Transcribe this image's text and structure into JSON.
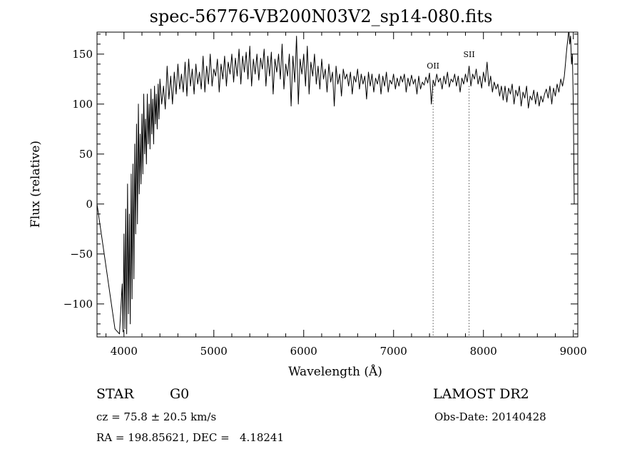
{
  "chart_data": {
    "type": "line",
    "title": "spec-56776-VB200N03V2_sp14-080.fits",
    "xlabel": "Wavelength (Å)",
    "ylabel": "Flux (relative)",
    "xlim": [
      3700,
      9050
    ],
    "ylim": [
      -133,
      172
    ],
    "x_ticks": [
      4000,
      5000,
      6000,
      7000,
      8000,
      9000
    ],
    "y_ticks": [
      -100,
      -50,
      0,
      50,
      100,
      150
    ],
    "grid": false,
    "series": [
      {
        "line_color": "#000000",
        "x": [
          3700,
          3900,
          3950,
          3980,
          3990,
          4000,
          4010,
          4020,
          4030,
          4040,
          4050,
          4060,
          4070,
          4080,
          4090,
          4100,
          4110,
          4120,
          4130,
          4140,
          4150,
          4160,
          4170,
          4180,
          4190,
          4200,
          4210,
          4220,
          4230,
          4240,
          4250,
          4260,
          4270,
          4280,
          4290,
          4300,
          4310,
          4320,
          4330,
          4340,
          4350,
          4360,
          4370,
          4380,
          4390,
          4400,
          4420,
          4440,
          4460,
          4480,
          4500,
          4520,
          4540,
          4560,
          4580,
          4600,
          4620,
          4640,
          4660,
          4680,
          4700,
          4720,
          4740,
          4760,
          4780,
          4800,
          4820,
          4840,
          4860,
          4880,
          4900,
          4920,
          4940,
          4960,
          4980,
          5000,
          5020,
          5040,
          5060,
          5080,
          5100,
          5120,
          5140,
          5160,
          5180,
          5200,
          5220,
          5240,
          5260,
          5280,
          5300,
          5320,
          5340,
          5360,
          5380,
          5400,
          5420,
          5440,
          5460,
          5480,
          5500,
          5520,
          5540,
          5560,
          5580,
          5600,
          5620,
          5640,
          5660,
          5680,
          5700,
          5720,
          5740,
          5760,
          5780,
          5800,
          5820,
          5840,
          5860,
          5880,
          5900,
          5920,
          5940,
          5960,
          5980,
          6000,
          6020,
          6040,
          6060,
          6080,
          6100,
          6120,
          6140,
          6160,
          6180,
          6200,
          6220,
          6240,
          6260,
          6280,
          6300,
          6320,
          6340,
          6360,
          6380,
          6400,
          6420,
          6440,
          6460,
          6480,
          6500,
          6520,
          6540,
          6560,
          6580,
          6600,
          6620,
          6640,
          6660,
          6680,
          6700,
          6720,
          6740,
          6760,
          6780,
          6800,
          6820,
          6840,
          6860,
          6880,
          6900,
          6920,
          6940,
          6960,
          6980,
          7000,
          7020,
          7040,
          7060,
          7080,
          7100,
          7120,
          7140,
          7160,
          7180,
          7200,
          7220,
          7240,
          7260,
          7280,
          7300,
          7320,
          7340,
          7360,
          7380,
          7400,
          7420,
          7440,
          7460,
          7480,
          7500,
          7520,
          7540,
          7560,
          7580,
          7600,
          7620,
          7640,
          7660,
          7680,
          7700,
          7720,
          7740,
          7760,
          7780,
          7800,
          7820,
          7840,
          7860,
          7880,
          7900,
          7920,
          7940,
          7960,
          7980,
          8000,
          8020,
          8040,
          8060,
          8080,
          8100,
          8120,
          8140,
          8160,
          8180,
          8200,
          8220,
          8240,
          8260,
          8280,
          8300,
          8320,
          8340,
          8360,
          8380,
          8400,
          8420,
          8440,
          8460,
          8480,
          8500,
          8520,
          8540,
          8560,
          8580,
          8600,
          8620,
          8640,
          8660,
          8680,
          8700,
          8720,
          8740,
          8760,
          8780,
          8800,
          8820,
          8840,
          8860,
          8880,
          8900,
          8910,
          8920,
          8930,
          8940,
          8950,
          8960,
          8970,
          8980,
          8990,
          9000,
          9010
        ],
        "y": [
          0,
          -125,
          -130,
          -80,
          -128,
          -30,
          -125,
          -5,
          -130,
          20,
          -110,
          -10,
          -120,
          30,
          -95,
          40,
          -75,
          60,
          -30,
          80,
          -20,
          100,
          10,
          70,
          20,
          90,
          30,
          110,
          50,
          85,
          40,
          110,
          60,
          100,
          55,
          115,
          70,
          105,
          60,
          118,
          80,
          110,
          75,
          120,
          85,
          125,
          100,
          118,
          95,
          138,
          105,
          128,
          100,
          132,
          110,
          140,
          115,
          130,
          112,
          142,
          108,
          145,
          118,
          135,
          110,
          140,
          120,
          132,
          115,
          148,
          112,
          138,
          120,
          150,
          118,
          135,
          128,
          145,
          112,
          140,
          125,
          148,
          118,
          142,
          130,
          150,
          122,
          146,
          128,
          155,
          120,
          148,
          132,
          152,
          125,
          158,
          118,
          145,
          130,
          150,
          124,
          146,
          135,
          155,
          118,
          148,
          128,
          152,
          110,
          145,
          132,
          150,
          125,
          160,
          115,
          140,
          128,
          150,
          98,
          148,
          122,
          168,
          100,
          145,
          130,
          150,
          118,
          158,
          110,
          142,
          128,
          150,
          120,
          138,
          115,
          145,
          125,
          135,
          112,
          140,
          122,
          132,
          98,
          138,
          120,
          130,
          108,
          135,
          125,
          130,
          118,
          132,
          110,
          128,
          122,
          135,
          115,
          130,
          120,
          128,
          105,
          132,
          118,
          130,
          112,
          126,
          120,
          130,
          110,
          128,
          118,
          132,
          112,
          124,
          120,
          130,
          115,
          126,
          118,
          128,
          122,
          130,
          112,
          126,
          118,
          129,
          120,
          125,
          110,
          128,
          115,
          122,
          119,
          127,
          121,
          131,
          100,
          124,
          118,
          130,
          122,
          126,
          115,
          128,
          120,
          132,
          117,
          125,
          122,
          130,
          118,
          128,
          112,
          126,
          120,
          130,
          122,
          138,
          118,
          130,
          125,
          135,
          120,
          128,
          116,
          132,
          122,
          142,
          118,
          128,
          112,
          122,
          115,
          120,
          108,
          118,
          104,
          118,
          102,
          116,
          110,
          120,
          100,
          114,
          108,
          118,
          98,
          112,
          106,
          118,
          96,
          108,
          104,
          114,
          100,
          112,
          98,
          108,
          102,
          110,
          115,
          106,
          118,
          100,
          116,
          108,
          120,
          112,
          125,
          118,
          128,
          138,
          148,
          158,
          165,
          175,
          160,
          168,
          140,
          150,
          100,
          0
        ]
      }
    ],
    "reference_lines": [
      {
        "x": 7440,
        "label": "OII",
        "style": "dotted"
      },
      {
        "x": 7840,
        "label": "SII",
        "style": "dotted"
      }
    ]
  },
  "info": {
    "object_class": "STAR",
    "subclass": "G0",
    "survey": "LAMOST DR2",
    "cz": "cz = 75.8 ± 20.5 km/s",
    "obs_date": "Obs-Date: 20140428",
    "coords": "RA = 198.85621, DEC =   4.18241"
  }
}
